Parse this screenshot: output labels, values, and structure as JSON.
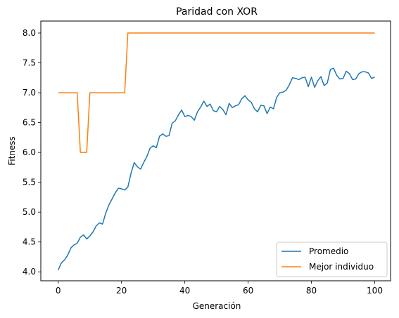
{
  "chart_data": {
    "type": "line",
    "title": "Paridad con XOR",
    "xlabel": "Generación",
    "ylabel": "Fitness",
    "xlim": [
      -5.5,
      105
    ],
    "ylim": [
      3.85,
      8.2
    ],
    "xticks": [
      0,
      20,
      40,
      60,
      80,
      100
    ],
    "yticks": [
      4.0,
      4.5,
      5.0,
      5.5,
      6.0,
      6.5,
      7.0,
      7.5,
      8.0
    ],
    "ytick_labels": [
      "4.0",
      "4.5",
      "5.0",
      "5.5",
      "6.0",
      "6.5",
      "7.0",
      "7.5",
      "8.0"
    ],
    "xtick_labels": [
      "0",
      "20",
      "40",
      "60",
      "80",
      "100"
    ],
    "grid": false,
    "legend_position": "lower-right",
    "series": [
      {
        "name": "Promedio",
        "color": "#1f77b4",
        "x": [
          0,
          1,
          2,
          3,
          4,
          5,
          6,
          7,
          8,
          9,
          10,
          11,
          12,
          13,
          14,
          15,
          16,
          17,
          18,
          19,
          20,
          21,
          22,
          23,
          24,
          25,
          26,
          27,
          28,
          29,
          30,
          31,
          32,
          33,
          34,
          35,
          36,
          37,
          38,
          39,
          40,
          41,
          42,
          43,
          44,
          45,
          46,
          47,
          48,
          49,
          50,
          51,
          52,
          53,
          54,
          55,
          56,
          57,
          58,
          59,
          60,
          61,
          62,
          63,
          64,
          65,
          66,
          67,
          68,
          69,
          70,
          71,
          72,
          73,
          74,
          75,
          76,
          77,
          78,
          79,
          80,
          81,
          82,
          83,
          84,
          85,
          86,
          87,
          88,
          89,
          90,
          91,
          92,
          93,
          94,
          95,
          96,
          97,
          98,
          99,
          100
        ],
        "values": [
          4.03,
          4.15,
          4.2,
          4.28,
          4.4,
          4.45,
          4.48,
          4.58,
          4.62,
          4.55,
          4.6,
          4.67,
          4.77,
          4.82,
          4.8,
          4.98,
          5.12,
          5.22,
          5.32,
          5.4,
          5.39,
          5.37,
          5.42,
          5.65,
          5.83,
          5.76,
          5.72,
          5.83,
          5.93,
          6.07,
          6.11,
          6.08,
          6.27,
          6.31,
          6.27,
          6.28,
          6.49,
          6.53,
          6.63,
          6.71,
          6.6,
          6.62,
          6.6,
          6.54,
          6.68,
          6.76,
          6.86,
          6.77,
          6.81,
          6.7,
          6.68,
          6.77,
          6.72,
          6.63,
          6.82,
          6.75,
          6.78,
          6.8,
          6.9,
          6.95,
          6.88,
          6.84,
          6.73,
          6.68,
          6.79,
          6.78,
          6.65,
          6.76,
          6.73,
          6.92,
          7.0,
          7.01,
          7.04,
          7.13,
          7.25,
          7.24,
          7.22,
          7.25,
          7.26,
          7.1,
          7.26,
          7.09,
          7.2,
          7.27,
          7.12,
          7.16,
          7.39,
          7.41,
          7.29,
          7.23,
          7.24,
          7.36,
          7.32,
          7.22,
          7.23,
          7.32,
          7.35,
          7.35,
          7.33,
          7.24,
          7.26
        ]
      },
      {
        "name": "Mejor individuo",
        "color": "#ff7f0e",
        "x": [
          0,
          6,
          7,
          8,
          9,
          10,
          21,
          22,
          100
        ],
        "values": [
          7.0,
          7.0,
          6.0,
          6.0,
          6.0,
          7.0,
          7.0,
          8.0,
          8.0
        ]
      }
    ]
  }
}
